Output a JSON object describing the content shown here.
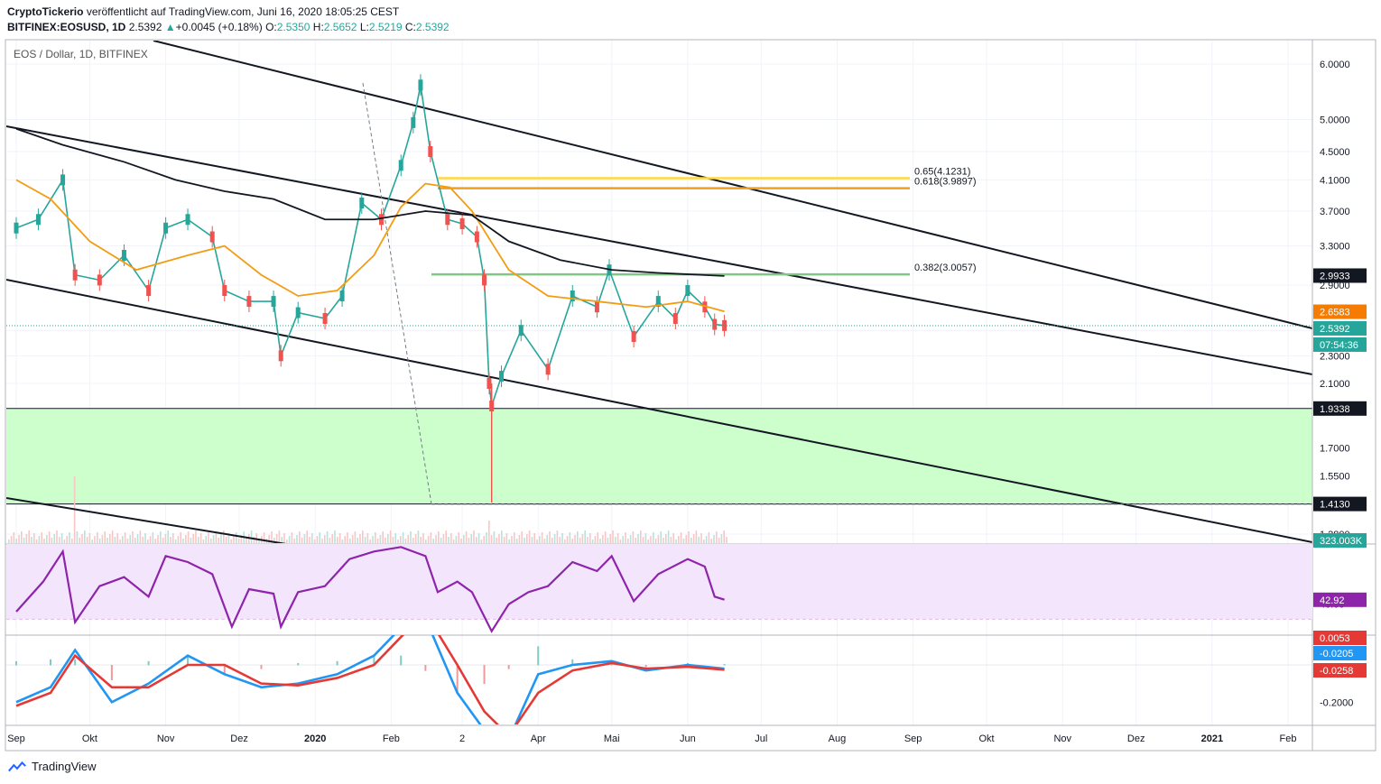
{
  "header": {
    "author": "CryptoTickerio",
    "published_text": "veröffentlicht auf TradingView.com, Juni 16, 2020 18:05:25 CEST",
    "symbol": "BITFINEX:EOSUSD, 1D",
    "last": "2.5392",
    "change": "+0.0045 (+0.18%)",
    "o_label": "O:",
    "o": "2.5350",
    "h_label": "H:",
    "h": "2.5652",
    "l_label": "L:",
    "l": "2.5219",
    "c_label": "C:",
    "c": "2.5392"
  },
  "chart_title": "EOS / Dollar, 1D, BITFINEX",
  "footer": {
    "brand": "TradingView"
  },
  "price_tags": {
    "ma200": "2.9933",
    "ma50": "2.6583",
    "last": "2.5392",
    "countdown": "07:54:36",
    "support_top": "1.9338",
    "support_bottom": "1.4130",
    "volume": "323.003K",
    "rsi": "42.92",
    "macd_hist": "0.0053",
    "macd_line": "-0.0205",
    "macd_signal": "-0.0258"
  },
  "fib_labels": {
    "f065": "0.65(4.1231)",
    "f0618": "0.618(3.9897)",
    "f0382": "0.382(3.0057)"
  },
  "colors": {
    "up": "#26a69a",
    "down": "#ef5350",
    "ma200": "#131722",
    "ma50": "#f39c12",
    "rsi": "#8e24aa",
    "rsi_bg": "#f3e5fc",
    "support_zone": "#ccffcc",
    "fib_yellow": "#ffd740",
    "fib_orange": "#f0a020",
    "fib_green": "#81c784",
    "macd": "#2196f3",
    "signal": "#e53935"
  },
  "chart_data": {
    "type": "line",
    "title": "EOS / Dollar, 1D, BITFINEX",
    "xlabel": "",
    "ylabel": "",
    "y_scale": "log",
    "ylim": [
      1.25,
      6.4
    ],
    "y_ticks": [
      "6.0000",
      "5.0000",
      "4.5000",
      "4.1000",
      "3.7000",
      "3.3000",
      "2.9000",
      "2.5000",
      "2.3000",
      "2.1000",
      "1.7000",
      "1.5500",
      "1.2800"
    ],
    "x_tick_labels": [
      "Sep",
      "Okt",
      "Nov",
      "Dez",
      "2020",
      "Feb",
      "2",
      "Apr",
      "Mai",
      "Jun",
      "Jul",
      "Aug",
      "Sep",
      "Okt",
      "Nov",
      "Dez",
      "2021",
      "Feb"
    ],
    "x_ticks_dates": [
      "2019-09-01",
      "2019-10-01",
      "2019-11-01",
      "2019-12-01",
      "2020-01-01",
      "2020-02-01",
      "2020-03-01",
      "2020-04-01",
      "2020-05-01",
      "2020-06-01",
      "2020-07-01",
      "2020-08-01",
      "2020-09-01",
      "2020-10-01",
      "2020-11-01",
      "2020-12-01",
      "2021-01-01",
      "2021-02-01"
    ],
    "price_series": {
      "name": "",
      "x": [
        "2019-09-01",
        "2019-09-10",
        "2019-09-20",
        "2019-09-25",
        "2019-10-05",
        "2019-10-15",
        "2019-10-25",
        "2019-11-01",
        "2019-11-10",
        "2019-11-20",
        "2019-11-25",
        "2019-12-05",
        "2019-12-15",
        "2019-12-18",
        "2019-12-25",
        "2020-01-05",
        "2020-01-12",
        "2020-01-20",
        "2020-01-28",
        "2020-02-05",
        "2020-02-10",
        "2020-02-13",
        "2020-02-17",
        "2020-02-24",
        "2020-03-01",
        "2020-03-07",
        "2020-03-10",
        "2020-03-12",
        "2020-03-13",
        "2020-03-17",
        "2020-03-25",
        "2020-04-05",
        "2020-04-15",
        "2020-04-25",
        "2020-04-30",
        "2020-05-10",
        "2020-05-20",
        "2020-05-27",
        "2020-06-01",
        "2020-06-08",
        "2020-06-12",
        "2020-06-16"
      ],
      "values": [
        3.5,
        3.6,
        4.1,
        3.0,
        2.95,
        3.2,
        2.85,
        3.5,
        3.6,
        3.4,
        2.85,
        2.75,
        2.75,
        2.3,
        2.65,
        2.6,
        2.8,
        3.8,
        3.6,
        4.3,
        4.95,
        5.6,
        4.5,
        3.6,
        3.55,
        3.4,
        2.95,
        2.1,
        1.95,
        2.15,
        2.5,
        2.2,
        2.8,
        2.7,
        3.05,
        2.45,
        2.75,
        2.6,
        2.85,
        2.7,
        2.55,
        2.54
      ]
    },
    "ma50_series": {
      "name": "",
      "x": [
        "2019-09-01",
        "2019-09-15",
        "2019-10-01",
        "2019-10-20",
        "2019-11-10",
        "2019-11-25",
        "2019-12-10",
        "2019-12-25",
        "2020-01-10",
        "2020-01-25",
        "2020-02-05",
        "2020-02-15",
        "2020-02-25",
        "2020-03-05",
        "2020-03-20",
        "2020-04-05",
        "2020-04-25",
        "2020-05-15",
        "2020-06-01",
        "2020-06-16"
      ],
      "values": [
        4.1,
        3.85,
        3.35,
        3.05,
        3.2,
        3.3,
        3.0,
        2.8,
        2.85,
        3.2,
        3.75,
        4.05,
        4.0,
        3.7,
        3.05,
        2.8,
        2.75,
        2.7,
        2.75,
        2.66
      ]
    },
    "ma200_series": {
      "name": "",
      "x": [
        "2019-09-01",
        "2019-09-20",
        "2019-10-15",
        "2019-11-05",
        "2019-11-25",
        "2019-12-15",
        "2020-01-05",
        "2020-01-25",
        "2020-02-15",
        "2020-03-05",
        "2020-03-20",
        "2020-04-10",
        "2020-05-01",
        "2020-05-20",
        "2020-06-16"
      ],
      "values": [
        4.85,
        4.6,
        4.35,
        4.1,
        3.95,
        3.85,
        3.6,
        3.6,
        3.7,
        3.65,
        3.35,
        3.15,
        3.05,
        3.02,
        2.99
      ]
    },
    "horizontal_levels": [
      {
        "label": "0.65(4.1231)",
        "value": 4.1231
      },
      {
        "label": "0.618(3.9897)",
        "value": 3.9897
      },
      {
        "label": "0.382(3.0057)",
        "value": 3.0057
      },
      {
        "label": "1.9338",
        "value": 1.9338
      },
      {
        "label": "1.4130",
        "value": 1.413
      }
    ],
    "support_zone": [
      1.413,
      1.9338
    ],
    "rsi": {
      "ylim": [
        20,
        80
      ],
      "y_ticks": [
        "40.00"
      ],
      "x": [
        "2019-09-01",
        "2019-09-12",
        "2019-09-20",
        "2019-09-25",
        "2019-10-05",
        "2019-10-15",
        "2019-10-25",
        "2019-11-01",
        "2019-11-10",
        "2019-11-20",
        "2019-11-28",
        "2019-12-05",
        "2019-12-15",
        "2019-12-18",
        "2019-12-25",
        "2020-01-05",
        "2020-01-15",
        "2020-01-25",
        "2020-02-05",
        "2020-02-15",
        "2020-02-20",
        "2020-02-28",
        "2020-03-05",
        "2020-03-13",
        "2020-03-20",
        "2020-03-28",
        "2020-04-05",
        "2020-04-15",
        "2020-04-25",
        "2020-05-01",
        "2020-05-10",
        "2020-05-20",
        "2020-06-01",
        "2020-06-08",
        "2020-06-12",
        "2020-06-16"
      ],
      "values": [
        35,
        55,
        75,
        28,
        52,
        58,
        45,
        72,
        68,
        60,
        25,
        50,
        47,
        25,
        48,
        52,
        70,
        75,
        78,
        72,
        48,
        55,
        48,
        22,
        40,
        48,
        52,
        68,
        62,
        72,
        42,
        60,
        70,
        65,
        45,
        43
      ]
    },
    "macd": {
      "ylim": [
        -0.32,
        0.16
      ],
      "y_ticks": [
        "-0.2000"
      ],
      "x": [
        "2019-09-01",
        "2019-09-15",
        "2019-09-25",
        "2019-10-10",
        "2019-10-25",
        "2019-11-10",
        "2019-11-25",
        "2019-12-10",
        "2019-12-25",
        "2020-01-10",
        "2020-01-25",
        "2020-02-05",
        "2020-02-15",
        "2020-02-28",
        "2020-03-10",
        "2020-03-20",
        "2020-04-01",
        "2020-04-15",
        "2020-05-01",
        "2020-05-15",
        "2020-06-01",
        "2020-06-16"
      ],
      "macd_values": [
        -0.2,
        -0.12,
        0.08,
        -0.2,
        -0.1,
        0.05,
        -0.05,
        -0.12,
        -0.1,
        -0.05,
        0.05,
        0.2,
        0.25,
        -0.15,
        -0.35,
        -0.4,
        -0.05,
        0.0,
        0.02,
        -0.03,
        0.0,
        -0.0205
      ],
      "signal_values": [
        -0.22,
        -0.15,
        0.05,
        -0.12,
        -0.12,
        0.0,
        0.0,
        -0.1,
        -0.11,
        -0.07,
        0.0,
        0.15,
        0.28,
        0.0,
        -0.25,
        -0.38,
        -0.15,
        -0.03,
        0.01,
        -0.02,
        -0.01,
        -0.0258
      ]
    }
  }
}
